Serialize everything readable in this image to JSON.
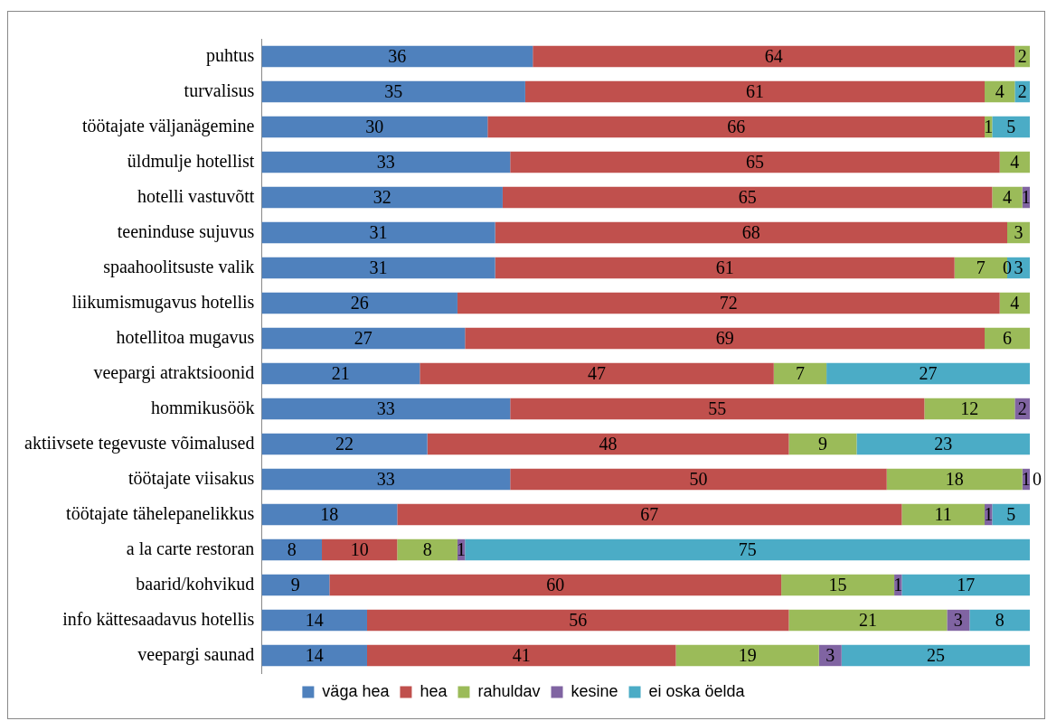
{
  "chart_data": {
    "type": "bar",
    "orientation": "horizontal",
    "stacked": true,
    "data_labels": true,
    "legend": "bottom",
    "categories": [
      "puhtus",
      "turvalisus",
      "töötajate väljanägemine",
      "üldmulje hotellist",
      "hotelli vastuvõtt",
      "teeninduse sujuvus",
      "spaahoolitsuste valik",
      "liikumismugavus hotellis",
      "hotellitoa mugavus",
      "veepargi atraktsioonid",
      "hommikusöök",
      "aktiivsete tegevuste võimalused",
      "töötajate viisakus",
      "töötajate tähelepanelikkus",
      "a la carte restoran",
      "baarid/kohvikud",
      "info kättesaadavus hotellis",
      "veepargi saunad"
    ],
    "series": [
      {
        "name": "väga hea",
        "color": "#4f81bd",
        "values": [
          36,
          35,
          30,
          33,
          32,
          31,
          31,
          26,
          27,
          21,
          33,
          22,
          33,
          18,
          8,
          9,
          14,
          14
        ]
      },
      {
        "name": "hea",
        "color": "#c0504d",
        "values": [
          64,
          61,
          66,
          65,
          65,
          68,
          61,
          72,
          69,
          47,
          55,
          48,
          50,
          67,
          10,
          60,
          56,
          41
        ]
      },
      {
        "name": "rahuldav",
        "color": "#9bbb59",
        "values": [
          2,
          4,
          1,
          4,
          4,
          3,
          7,
          4,
          6,
          7,
          12,
          9,
          18,
          11,
          8,
          15,
          21,
          19
        ]
      },
      {
        "name": "kesine",
        "color": "#8064a2",
        "values": [
          null,
          null,
          null,
          null,
          1,
          null,
          0,
          null,
          null,
          null,
          2,
          null,
          1,
          1,
          1,
          1,
          3,
          3
        ]
      },
      {
        "name": "ei oska öelda",
        "color": "#4bacc6",
        "values": [
          null,
          2,
          5,
          null,
          null,
          null,
          3,
          null,
          null,
          27,
          null,
          23,
          0,
          5,
          75,
          17,
          8,
          25
        ]
      }
    ]
  }
}
